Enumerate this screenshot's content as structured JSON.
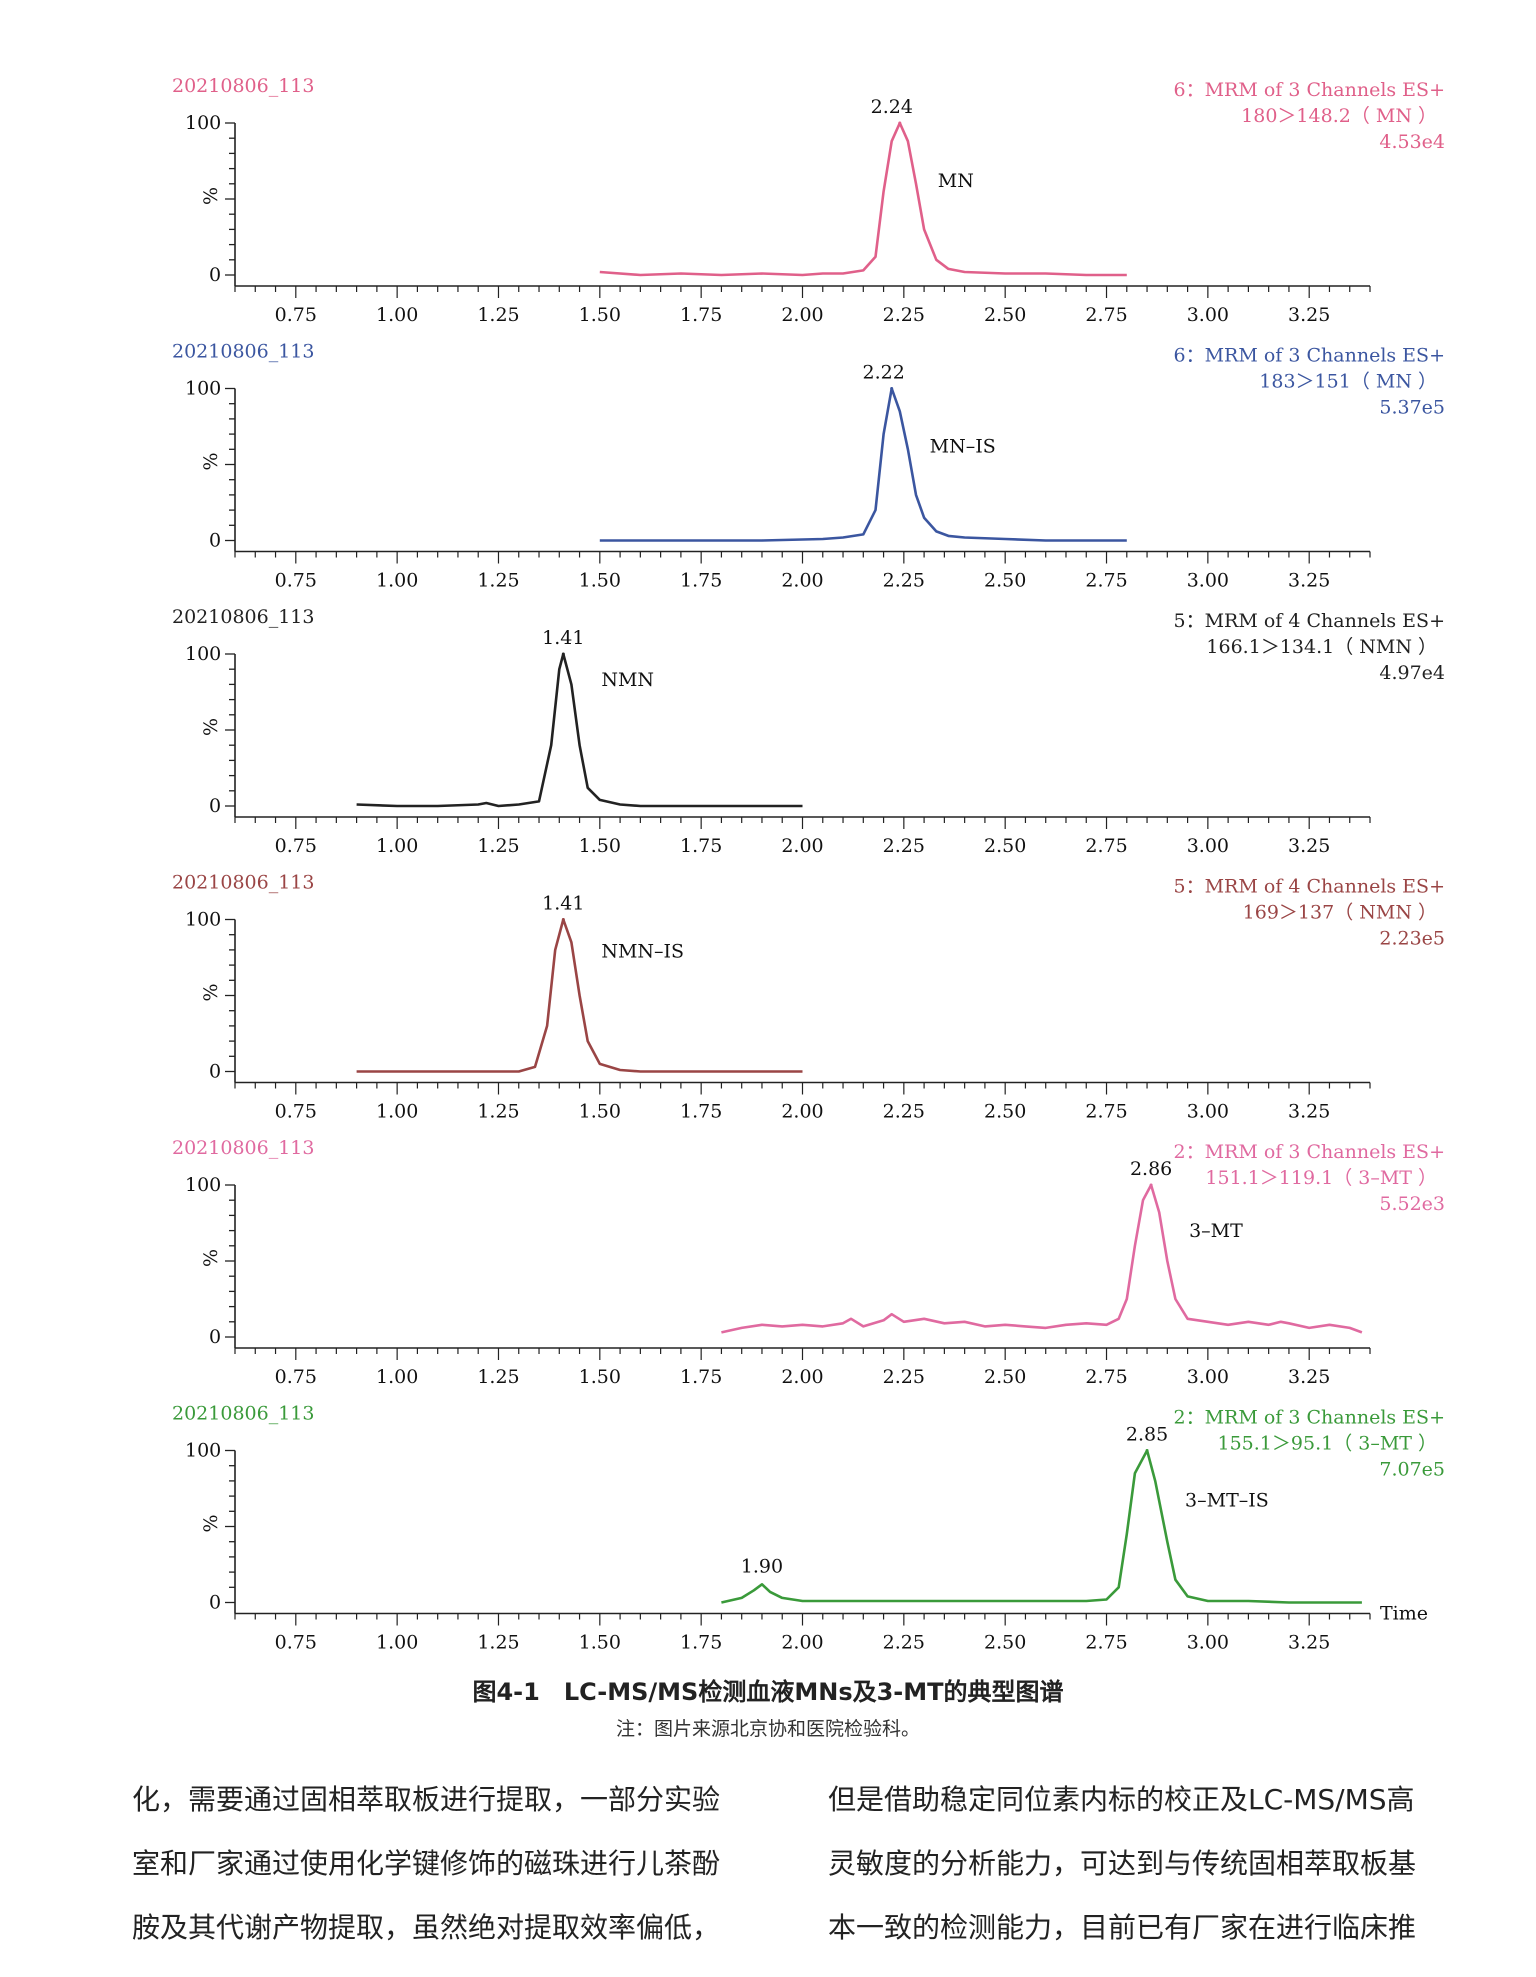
{
  "panels": [
    {
      "sample": "20210806_113",
      "channel_line1": "6：MRM of 3 Channels ES+",
      "channel_line2": "180＞148.2（ MN ）",
      "intensity": "4.53e4",
      "peak_rt_label": "2.24",
      "compound": "MN",
      "color": "#e0608a"
    },
    {
      "sample": "20210806_113",
      "channel_line1": "6：MRM of 3 Channels ES+",
      "channel_line2": "183＞151（ MN ）",
      "intensity": "5.37e5",
      "peak_rt_label": "2.22",
      "compound": "MN–IS",
      "color": "#3b56a0"
    },
    {
      "sample": "20210806_113",
      "channel_line1": "5：MRM of 4 Channels ES+",
      "channel_line2": "166.1＞134.1（ NMN ）",
      "intensity": "4.97e4",
      "peak_rt_label": "1.41",
      "compound": "NMN",
      "color": "#222222"
    },
    {
      "sample": "20210806_113",
      "channel_line1": "5：MRM of 4 Channels ES+",
      "channel_line2": "169＞137（ NMN ）",
      "intensity": "2.23e5",
      "peak_rt_label": "1.41",
      "compound": "NMN–IS",
      "color": "#9a4545"
    },
    {
      "sample": "20210806_113",
      "channel_line1": "2：MRM of 3 Channels ES+",
      "channel_line2": "151.1＞119.1（ 3–MT ）",
      "intensity": "5.52e3",
      "peak_rt_label": "2.86",
      "compound": "3–MT",
      "color": "#e06aa0"
    },
    {
      "sample": "20210806_113",
      "channel_line1": "2：MRM of 3 Channels ES+",
      "channel_line2": "155.1＞95.1（ 3–MT ）",
      "intensity": "7.07e5",
      "peak_rt_label": "2.85",
      "compound": "3–MT–IS",
      "color": "#3a9a3a",
      "extra_peak_label": "1.90",
      "x_axis_label": "Time"
    }
  ],
  "y_axis": {
    "label": "%",
    "ticks": [
      "100",
      "0"
    ]
  },
  "x_ticks": [
    "0.75",
    "1.00",
    "1.25",
    "1.50",
    "1.75",
    "2.00",
    "2.25",
    "2.50",
    "2.75",
    "3.00",
    "3.25"
  ],
  "chart_data": [
    {
      "type": "line",
      "title": "20210806_113",
      "xlabel": "",
      "ylabel": "%",
      "xlim": [
        0.6,
        3.4
      ],
      "ylim": [
        0,
        100
      ],
      "series": [
        {
          "name": "MN",
          "x": [
            1.5,
            1.6,
            1.7,
            1.8,
            1.9,
            2.0,
            2.05,
            2.1,
            2.15,
            2.18,
            2.2,
            2.22,
            2.24,
            2.26,
            2.28,
            2.3,
            2.33,
            2.36,
            2.4,
            2.5,
            2.6,
            2.7,
            2.8
          ],
          "y": [
            2,
            0,
            1,
            0,
            1,
            0,
            1,
            1,
            3,
            12,
            55,
            88,
            100,
            88,
            60,
            30,
            10,
            4,
            2,
            1,
            1,
            0,
            0
          ]
        }
      ]
    },
    {
      "type": "line",
      "title": "20210806_113",
      "xlabel": "",
      "ylabel": "%",
      "xlim": [
        0.6,
        3.4
      ],
      "ylim": [
        0,
        100
      ],
      "series": [
        {
          "name": "MN–IS",
          "x": [
            1.5,
            1.7,
            1.9,
            2.05,
            2.1,
            2.15,
            2.18,
            2.2,
            2.22,
            2.24,
            2.26,
            2.28,
            2.3,
            2.33,
            2.36,
            2.4,
            2.5,
            2.6,
            2.7,
            2.8
          ],
          "y": [
            0,
            0,
            0,
            1,
            2,
            4,
            20,
            70,
            100,
            85,
            60,
            30,
            15,
            6,
            3,
            2,
            1,
            0,
            0,
            0
          ]
        }
      ]
    },
    {
      "type": "line",
      "title": "20210806_113",
      "xlabel": "",
      "ylabel": "%",
      "xlim": [
        0.6,
        3.4
      ],
      "ylim": [
        0,
        100
      ],
      "series": [
        {
          "name": "NMN",
          "x": [
            0.9,
            1.0,
            1.1,
            1.2,
            1.22,
            1.25,
            1.3,
            1.35,
            1.38,
            1.4,
            1.41,
            1.43,
            1.45,
            1.47,
            1.5,
            1.55,
            1.6,
            1.7,
            1.8,
            1.9,
            2.0
          ],
          "y": [
            1,
            0,
            0,
            1,
            2,
            0,
            1,
            3,
            40,
            90,
            100,
            80,
            40,
            12,
            4,
            1,
            0,
            0,
            0,
            0,
            0
          ]
        }
      ]
    },
    {
      "type": "line",
      "title": "20210806_113",
      "xlabel": "",
      "ylabel": "%",
      "xlim": [
        0.6,
        3.4
      ],
      "ylim": [
        0,
        100
      ],
      "series": [
        {
          "name": "NMN–IS",
          "x": [
            0.9,
            1.0,
            1.1,
            1.2,
            1.3,
            1.34,
            1.37,
            1.39,
            1.41,
            1.43,
            1.45,
            1.47,
            1.5,
            1.55,
            1.6,
            1.7,
            1.8,
            1.9,
            2.0
          ],
          "y": [
            0,
            0,
            0,
            0,
            0,
            3,
            30,
            80,
            100,
            85,
            50,
            20,
            5,
            1,
            0,
            0,
            0,
            0,
            0
          ]
        }
      ]
    },
    {
      "type": "line",
      "title": "20210806_113",
      "xlabel": "",
      "ylabel": "%",
      "xlim": [
        0.6,
        3.4
      ],
      "ylim": [
        0,
        100
      ],
      "series": [
        {
          "name": "3–MT",
          "x": [
            1.8,
            1.85,
            1.9,
            1.95,
            2.0,
            2.05,
            2.1,
            2.12,
            2.15,
            2.2,
            2.22,
            2.25,
            2.3,
            2.35,
            2.4,
            2.45,
            2.5,
            2.55,
            2.6,
            2.65,
            2.7,
            2.75,
            2.78,
            2.8,
            2.82,
            2.84,
            2.86,
            2.88,
            2.9,
            2.92,
            2.95,
            3.0,
            3.05,
            3.1,
            3.15,
            3.18,
            3.2,
            3.25,
            3.3,
            3.35,
            3.38
          ],
          "y": [
            3,
            6,
            8,
            7,
            8,
            7,
            9,
            12,
            7,
            11,
            15,
            10,
            12,
            9,
            10,
            7,
            8,
            7,
            6,
            8,
            9,
            8,
            12,
            25,
            60,
            90,
            100,
            82,
            50,
            25,
            12,
            10,
            8,
            10,
            8,
            10,
            9,
            6,
            8,
            6,
            3
          ]
        }
      ]
    },
    {
      "type": "line",
      "title": "20210806_113",
      "xlabel": "Time",
      "ylabel": "%",
      "xlim": [
        0.6,
        3.4
      ],
      "ylim": [
        0,
        100
      ],
      "series": [
        {
          "name": "3–MT–IS",
          "x": [
            1.8,
            1.85,
            1.88,
            1.9,
            1.92,
            1.95,
            2.0,
            2.2,
            2.5,
            2.7,
            2.75,
            2.78,
            2.8,
            2.82,
            2.85,
            2.87,
            2.9,
            2.92,
            2.95,
            3.0,
            3.1,
            3.2,
            3.3,
            3.38
          ],
          "y": [
            0,
            3,
            8,
            12,
            7,
            3,
            1,
            1,
            1,
            1,
            2,
            10,
            45,
            85,
            100,
            80,
            40,
            15,
            4,
            1,
            1,
            0,
            0,
            0
          ]
        }
      ]
    }
  ],
  "figure": {
    "caption": "图4-1　LC-MS/MS检测血液MNs及3-MT的典型图谱",
    "note": "注：图片来源北京协和医院检验科。"
  },
  "body_text": {
    "left": [
      "化，需要通过固相萃取板进行提取，一部分实验",
      "室和厂家通过使用化学键修饰的磁珠进行儿茶酚",
      "胺及其代谢产物提取，虽然绝对提取效率偏低，"
    ],
    "right": [
      "但是借助稳定同位素内标的校正及LC-MS/MS高",
      "灵敏度的分析能力，可达到与传统固相萃取板基",
      "本一致的检测能力，目前已有厂家在进行临床推"
    ]
  }
}
